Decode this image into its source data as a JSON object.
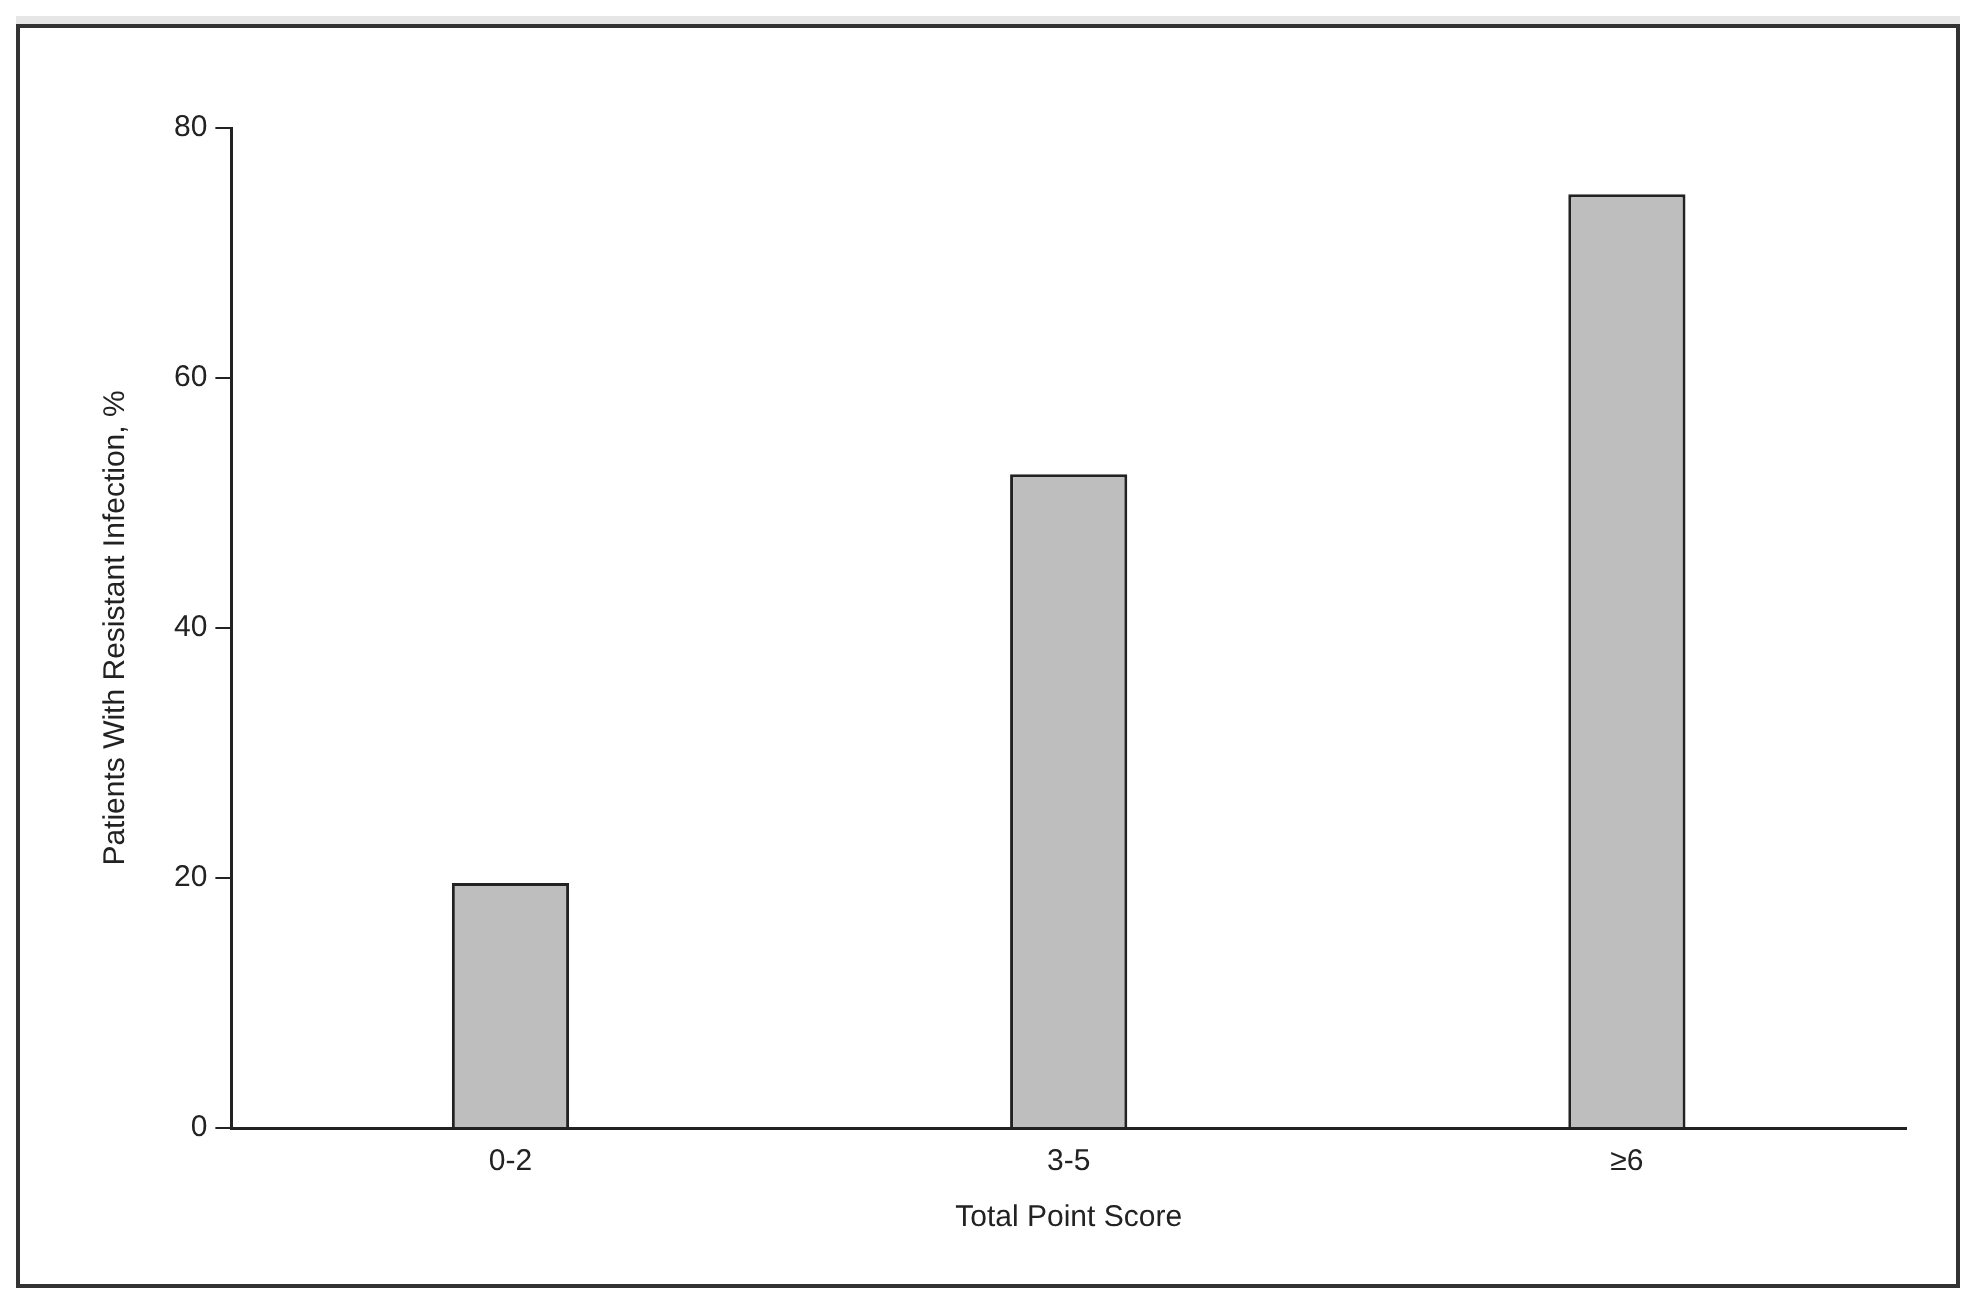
{
  "chart_data": {
    "type": "bar",
    "xlabel": "Total Point Score",
    "ylabel": "Patients With Resistant Infection, %",
    "categories": [
      "0-2",
      "3-5",
      "≥6"
    ],
    "values": [
      19.6,
      52.3,
      74.7
    ],
    "color": "#bebebe",
    "ylim": [
      0,
      80
    ],
    "yticks": [
      0,
      20,
      40,
      60,
      80
    ],
    "grid": false,
    "legend": false
  }
}
